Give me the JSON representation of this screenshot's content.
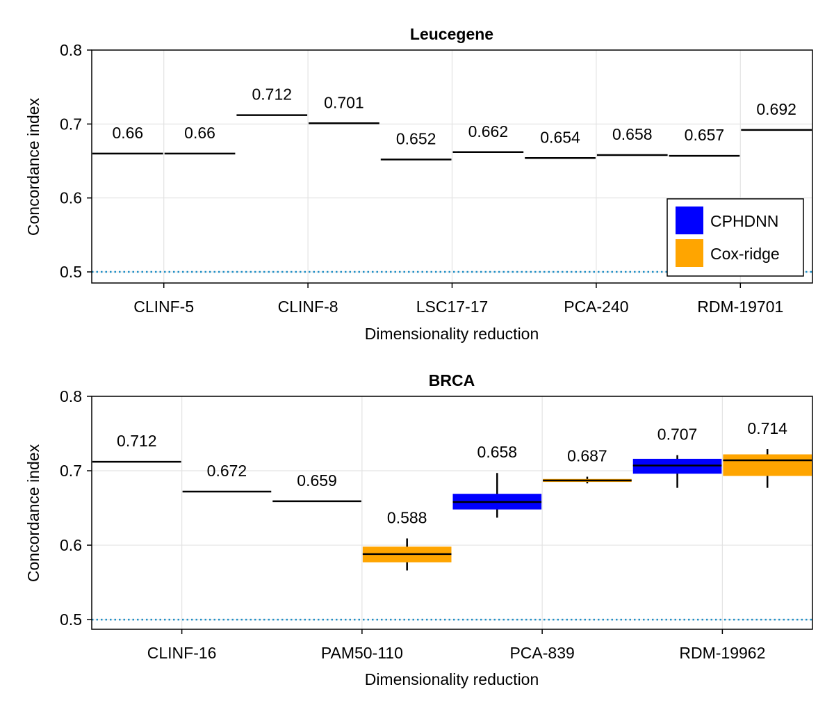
{
  "colors": {
    "cphdnn": "#0000ff",
    "coxridge": "#ffa500",
    "baseline": "#1f8fc6",
    "grid": "#e3e3e3",
    "median": "#000000"
  },
  "legend": {
    "placement": "bottom-right of top panel",
    "entries": [
      {
        "label": "CPHDNN",
        "color": "#0000ff"
      },
      {
        "label": "Cox-ridge",
        "color": "#ffa500"
      }
    ]
  },
  "chart_data": [
    {
      "type": "box",
      "title": "Leucegene",
      "xlabel": "Dimensionality reduction",
      "ylabel": "Concordance index",
      "ylim": [
        0.485,
        0.8
      ],
      "yticks": [
        "0.5",
        "0.6",
        "0.7",
        "0.8"
      ],
      "yticks_values": [
        0.5,
        0.6,
        0.7,
        0.8
      ],
      "grid": true,
      "baseline": 0.5,
      "categories": [
        "CLINF-5",
        "CLINF-8",
        "LSC17-17",
        "PCA-240",
        "RDM-19701"
      ],
      "series": [
        {
          "name": "CPHDNN",
          "color": "#0000ff",
          "boxes": [
            {
              "median": 0.66,
              "q1": 0.66,
              "q3": 0.66,
              "wlo": 0.66,
              "whi": 0.66,
              "label": "0.66"
            },
            {
              "median": 0.712,
              "q1": 0.712,
              "q3": 0.712,
              "wlo": 0.712,
              "whi": 0.712,
              "label": "0.712"
            },
            {
              "median": 0.652,
              "q1": 0.652,
              "q3": 0.652,
              "wlo": 0.652,
              "whi": 0.652,
              "label": "0.652"
            },
            {
              "median": 0.654,
              "q1": 0.654,
              "q3": 0.654,
              "wlo": 0.654,
              "whi": 0.654,
              "label": "0.654"
            },
            {
              "median": 0.657,
              "q1": 0.657,
              "q3": 0.657,
              "wlo": 0.657,
              "whi": 0.657,
              "label": "0.657"
            }
          ]
        },
        {
          "name": "Cox-ridge",
          "color": "#ffa500",
          "boxes": [
            {
              "median": 0.66,
              "q1": 0.66,
              "q3": 0.66,
              "wlo": 0.66,
              "whi": 0.66,
              "label": "0.66"
            },
            {
              "median": 0.701,
              "q1": 0.701,
              "q3": 0.701,
              "wlo": 0.701,
              "whi": 0.701,
              "label": "0.701"
            },
            {
              "median": 0.662,
              "q1": 0.662,
              "q3": 0.662,
              "wlo": 0.662,
              "whi": 0.662,
              "label": "0.662"
            },
            {
              "median": 0.658,
              "q1": 0.658,
              "q3": 0.658,
              "wlo": 0.658,
              "whi": 0.658,
              "label": "0.658"
            },
            {
              "median": 0.692,
              "q1": 0.692,
              "q3": 0.692,
              "wlo": 0.692,
              "whi": 0.692,
              "label": "0.692"
            }
          ]
        }
      ]
    },
    {
      "type": "box",
      "title": "BRCA",
      "xlabel": "Dimensionality reduction",
      "ylabel": "Concordance index",
      "ylim": [
        0.487,
        0.8
      ],
      "yticks": [
        "0.5",
        "0.6",
        "0.7",
        "0.8"
      ],
      "yticks_values": [
        0.5,
        0.6,
        0.7,
        0.8
      ],
      "grid": true,
      "baseline": 0.5,
      "categories": [
        "CLINF-16",
        "PAM50-110",
        "PCA-839",
        "RDM-19962"
      ],
      "series": [
        {
          "name": "CPHDNN",
          "color": "#0000ff",
          "boxes": [
            {
              "median": 0.712,
              "q1": 0.712,
              "q3": 0.712,
              "wlo": 0.712,
              "whi": 0.712,
              "label": "0.712"
            },
            {
              "median": 0.659,
              "q1": 0.659,
              "q3": 0.659,
              "wlo": 0.659,
              "whi": 0.659,
              "label": "0.659"
            },
            {
              "median": 0.658,
              "q1": 0.648,
              "q3": 0.669,
              "wlo": 0.637,
              "whi": 0.697,
              "label": "0.658"
            },
            {
              "median": 0.707,
              "q1": 0.696,
              "q3": 0.716,
              "wlo": 0.677,
              "whi": 0.721,
              "label": "0.707"
            }
          ]
        },
        {
          "name": "Cox-ridge",
          "color": "#ffa500",
          "boxes": [
            {
              "median": 0.672,
              "q1": 0.672,
              "q3": 0.672,
              "wlo": 0.672,
              "whi": 0.672,
              "label": "0.672"
            },
            {
              "median": 0.588,
              "q1": 0.577,
              "q3": 0.598,
              "wlo": 0.566,
              "whi": 0.609,
              "label": "0.588"
            },
            {
              "median": 0.687,
              "q1": 0.685,
              "q3": 0.689,
              "wlo": 0.683,
              "whi": 0.692,
              "label": "0.687"
            },
            {
              "median": 0.714,
              "q1": 0.693,
              "q3": 0.722,
              "wlo": 0.677,
              "whi": 0.729,
              "label": "0.714"
            }
          ]
        }
      ]
    }
  ]
}
